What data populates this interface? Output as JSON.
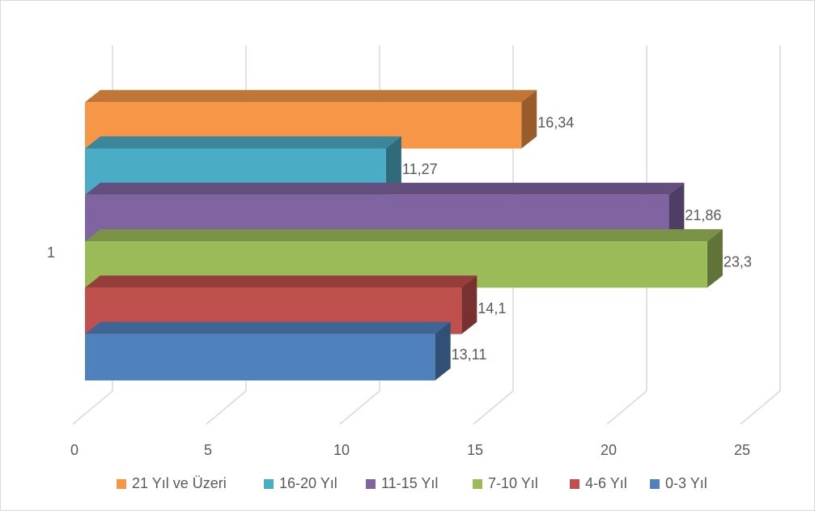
{
  "chart_data": {
    "type": "bar",
    "orientation": "horizontal",
    "style": "3d-clustered",
    "categories": [
      "1"
    ],
    "series": [
      {
        "name": "0-3 Yıl",
        "label": "13,11",
        "values": [
          13.11
        ],
        "color": "#4f81bd"
      },
      {
        "name": "4-6 Yıl",
        "label": "14,1",
        "values": [
          14.1
        ],
        "color": "#c0504d"
      },
      {
        "name": "7-10 Yıl",
        "label": "23,3",
        "values": [
          23.3
        ],
        "color": "#9bbb59"
      },
      {
        "name": "11-15 Yıl",
        "label": "21,86",
        "values": [
          21.86
        ],
        "color": "#8064a2"
      },
      {
        "name": "16-20 Yıl",
        "label": "11,27",
        "values": [
          11.27
        ],
        "color": "#4bacc6"
      },
      {
        "name": "21 Yıl ve Üzeri",
        "label": "16,34",
        "values": [
          16.34
        ],
        "color": "#f79646"
      }
    ],
    "legend_order": [
      "21 Yıl ve Üzeri",
      "16-20 Yıl",
      "11-15 Yıl",
      "7-10 Yıl",
      "4-6 Yıl",
      "0-3 Yıl"
    ],
    "x_ticks": [
      "0",
      "5",
      "10",
      "15",
      "20",
      "25"
    ],
    "xlim": [
      0,
      25
    ],
    "title": "",
    "xlabel": "",
    "ylabel": "",
    "grid": true,
    "legend_position": "bottom"
  }
}
